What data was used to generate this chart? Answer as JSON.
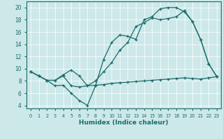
{
  "xlabel": "Humidex (Indice chaleur)",
  "xlim": [
    -0.5,
    23.5
  ],
  "ylim": [
    3.5,
    21
  ],
  "yticks": [
    4,
    6,
    8,
    10,
    12,
    14,
    16,
    18,
    20
  ],
  "xticks": [
    0,
    1,
    2,
    3,
    4,
    5,
    6,
    7,
    8,
    9,
    10,
    11,
    12,
    13,
    14,
    15,
    16,
    17,
    18,
    19,
    20,
    21,
    22,
    23
  ],
  "bg_color": "#cde8e8",
  "line_color": "#1a6b6b",
  "line1_x": [
    0,
    1,
    2,
    3,
    4,
    5,
    6,
    7,
    8,
    9,
    10,
    11,
    12,
    13,
    14,
    15,
    16,
    17,
    18,
    19,
    20,
    21,
    22,
    23
  ],
  "line1_y": [
    9.5,
    8.8,
    8.1,
    7.2,
    7.3,
    6.0,
    4.8,
    4.0,
    7.2,
    11.5,
    14.3,
    15.5,
    15.3,
    14.8,
    18.0,
    18.5,
    19.8,
    20.0,
    20.0,
    19.3,
    17.7,
    14.8,
    10.8,
    8.7
  ],
  "line2_x": [
    0,
    1,
    2,
    3,
    4,
    5,
    6,
    7,
    8,
    9,
    10,
    11,
    12,
    13,
    14,
    15,
    16,
    17,
    18,
    19,
    20,
    21,
    22,
    23
  ],
  "line2_y": [
    9.5,
    8.8,
    8.1,
    8.1,
    8.8,
    7.2,
    7.0,
    7.2,
    7.3,
    7.4,
    7.6,
    7.7,
    7.8,
    7.9,
    8.0,
    8.1,
    8.2,
    8.3,
    8.4,
    8.5,
    8.4,
    8.3,
    8.5,
    8.7
  ],
  "line3_x": [
    0,
    1,
    2,
    3,
    4,
    5,
    6,
    7,
    8,
    9,
    10,
    11,
    12,
    13,
    14,
    15,
    16,
    17,
    18,
    19,
    20,
    21,
    22,
    23
  ],
  "line3_y": [
    9.5,
    8.8,
    8.1,
    8.1,
    9.0,
    9.8,
    8.8,
    7.2,
    8.0,
    9.5,
    11.0,
    13.0,
    14.3,
    16.9,
    17.5,
    18.3,
    18.0,
    18.2,
    18.5,
    19.5,
    17.7,
    14.8,
    10.8,
    8.7
  ]
}
